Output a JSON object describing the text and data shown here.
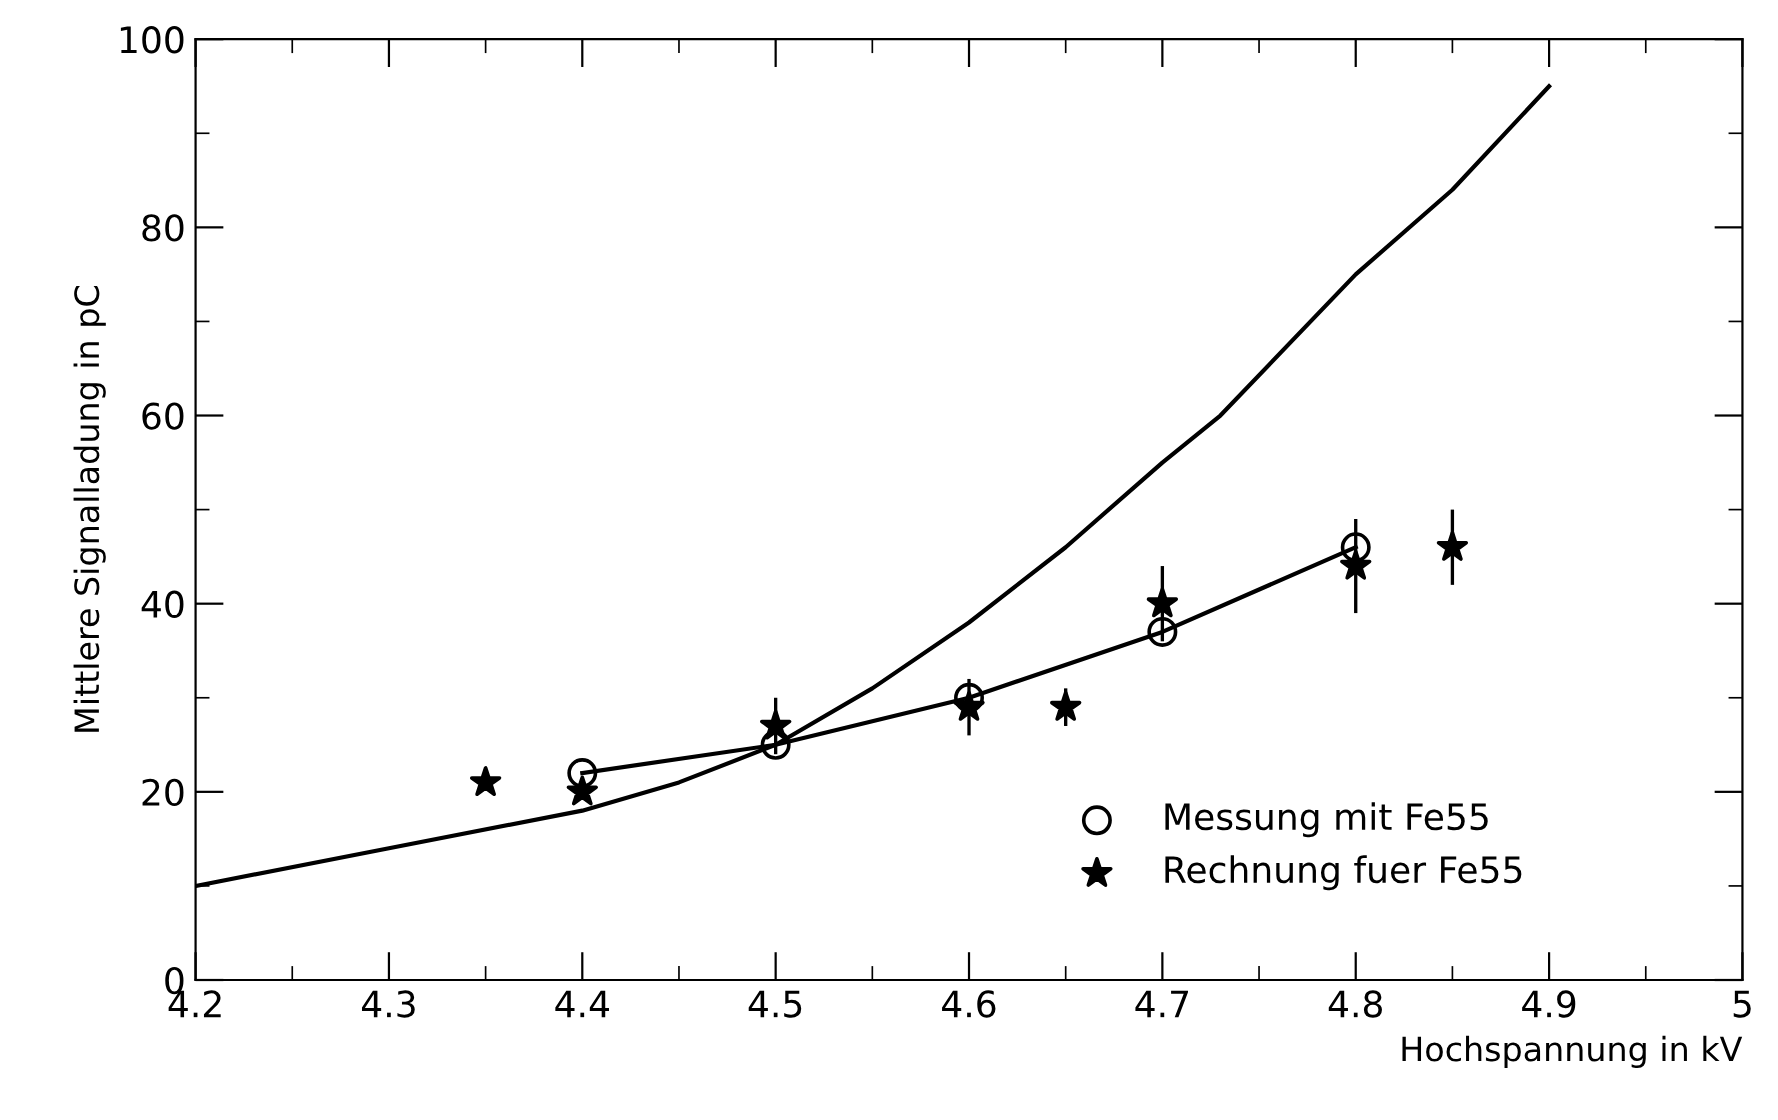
{
  "chart_data": {
    "type": "scatter",
    "xlabel": "Hochspannung in kV",
    "ylabel": "Mittlere Signalladung in pC",
    "xlim": [
      4.2,
      5.0
    ],
    "xticks": [
      4.2,
      4.3,
      4.4,
      4.5,
      4.6,
      4.7,
      4.8,
      4.9,
      5
    ],
    "ylim": [
      0,
      100
    ],
    "yticks": [
      0,
      20,
      40,
      60,
      80,
      100
    ],
    "grid": false,
    "legend": "bottom right",
    "series": [
      {
        "type": "line",
        "color": "#000000",
        "x": [
          4.2,
          4.3,
          4.4,
          4.45,
          4.5,
          4.55,
          4.6,
          4.65,
          4.7,
          4.73,
          4.8,
          4.85,
          4.9
        ],
        "values": [
          10,
          14,
          18,
          21,
          25,
          31,
          38,
          46,
          55,
          60,
          75,
          84,
          95
        ],
        "marker": "none",
        "line_style": "solid"
      },
      {
        "type": "line",
        "color": "#000000",
        "x": [
          4.4,
          4.5,
          4.6,
          4.7,
          4.8
        ],
        "values": [
          22,
          25,
          30,
          37,
          46
        ],
        "marker": "none",
        "line_style": "solid"
      },
      {
        "name": "Messung mit Fe55",
        "color": "#000000",
        "marker": "circle",
        "x": [
          4.4,
          4.5,
          4.6,
          4.7,
          4.8
        ],
        "values": [
          22,
          25,
          30,
          37,
          46
        ]
      },
      {
        "name": "Rechnung fuer Fe55",
        "color": "#000000",
        "marker": "star",
        "x": [
          4.35,
          4.4,
          4.5,
          4.6,
          4.65,
          4.7,
          4.8,
          4.85
        ],
        "values": [
          21,
          20,
          27,
          29,
          29,
          40,
          44,
          46
        ],
        "errors": [
          null,
          null,
          3,
          3,
          2,
          4,
          5,
          4
        ]
      }
    ]
  }
}
